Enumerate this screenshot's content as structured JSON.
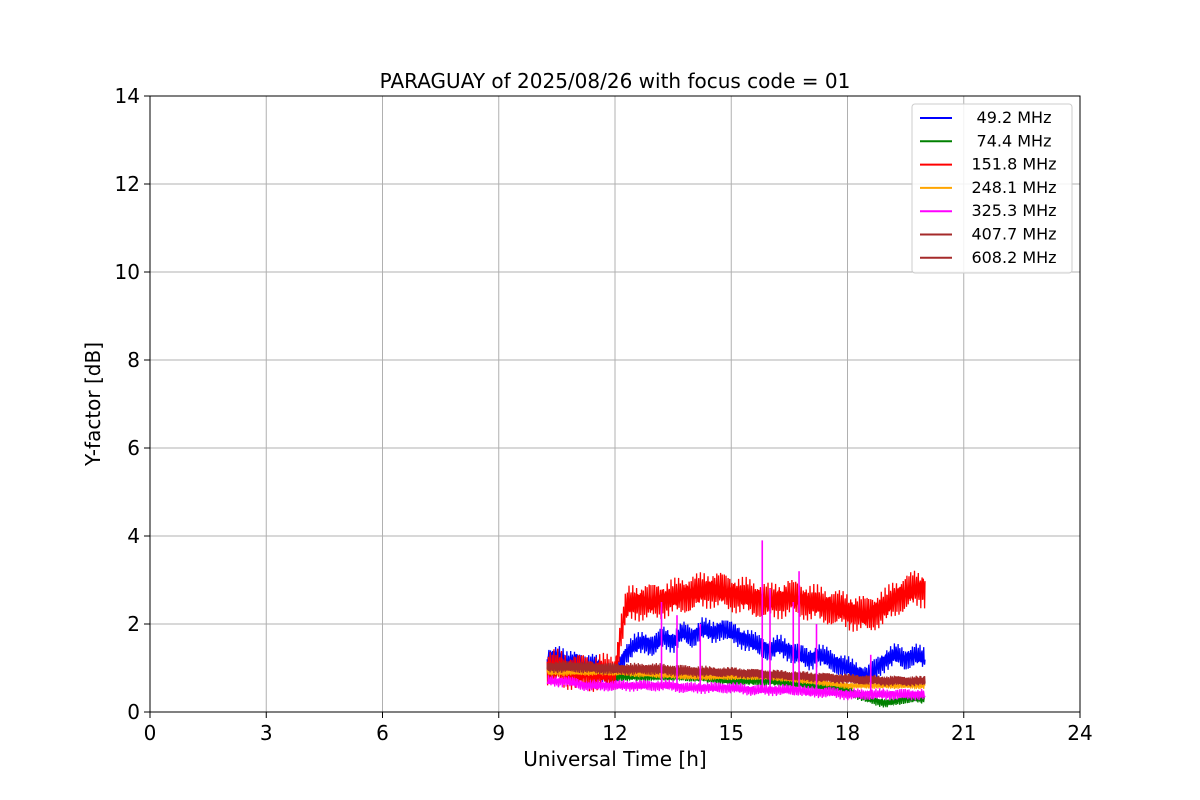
{
  "chart_data": {
    "type": "line",
    "title": "PARAGUAY of 2025/08/26 with focus code = 01",
    "xlabel": "Universal Time [h]",
    "ylabel": "Y-factor [dB]",
    "xlim": [
      0,
      24
    ],
    "ylim": [
      0,
      14
    ],
    "xticks": [
      0,
      3,
      6,
      9,
      12,
      15,
      18,
      21,
      24
    ],
    "yticks": [
      0,
      2,
      4,
      6,
      8,
      10,
      12,
      14
    ],
    "grid": true,
    "legend_position": "top-right",
    "series": [
      {
        "name": " 49.2 MHz",
        "color": "#0000ff",
        "x": [
          10.25,
          10.5,
          10.75,
          11.0,
          11.25,
          11.5,
          11.75,
          12.0,
          12.25,
          12.5,
          12.75,
          13.0,
          13.25,
          13.5,
          13.75,
          14.0,
          14.25,
          14.5,
          14.75,
          15.0,
          15.25,
          15.5,
          15.75,
          16.0,
          16.25,
          16.5,
          16.75,
          17.0,
          17.25,
          17.5,
          17.75,
          18.0,
          18.25,
          18.5,
          18.75,
          19.0,
          19.25,
          19.5,
          19.75,
          20.0
        ],
        "y": [
          1.2,
          1.3,
          1.1,
          1.2,
          1.0,
          1.1,
          0.9,
          0.8,
          1.3,
          1.5,
          1.6,
          1.5,
          1.7,
          1.6,
          1.8,
          1.7,
          1.9,
          1.8,
          1.9,
          1.8,
          1.7,
          1.6,
          1.5,
          1.4,
          1.5,
          1.4,
          1.3,
          1.2,
          1.3,
          1.2,
          1.1,
          1.0,
          0.9,
          0.8,
          1.0,
          1.2,
          1.3,
          1.2,
          1.3,
          1.2
        ]
      },
      {
        "name": " 74.4 MHz",
        "color": "#008000",
        "x": [
          10.25,
          11.0,
          12.0,
          13.0,
          14.0,
          15.0,
          16.0,
          17.0,
          18.0,
          18.5,
          19.0,
          19.5,
          20.0
        ],
        "y": [
          0.9,
          0.9,
          0.8,
          0.8,
          0.8,
          0.7,
          0.7,
          0.6,
          0.5,
          0.3,
          0.2,
          0.3,
          0.3
        ]
      },
      {
        "name": " 151.8 MHz",
        "color": "#ff0000",
        "x": [
          10.25,
          10.5,
          11.0,
          11.5,
          12.0,
          12.15,
          12.3,
          12.5,
          13.0,
          13.5,
          14.0,
          14.5,
          15.0,
          15.5,
          16.0,
          16.5,
          17.0,
          17.5,
          18.0,
          18.5,
          18.75,
          19.0,
          19.25,
          19.5,
          19.75,
          20.0
        ],
        "y": [
          1.0,
          1.0,
          0.9,
          0.9,
          0.9,
          1.8,
          2.4,
          2.5,
          2.5,
          2.6,
          2.7,
          2.8,
          2.7,
          2.6,
          2.5,
          2.6,
          2.5,
          2.4,
          2.3,
          2.2,
          2.3,
          2.4,
          2.6,
          2.7,
          2.8,
          2.8
        ]
      },
      {
        "name": " 248.1 MHz",
        "color": "#ffa500",
        "x": [
          10.25,
          12.0,
          14.0,
          16.0,
          18.0,
          20.0
        ],
        "y": [
          0.9,
          0.9,
          0.8,
          0.8,
          0.6,
          0.6
        ]
      },
      {
        "name": " 325.3 MHz",
        "color": "#ff00ff",
        "x": [
          10.25,
          10.75,
          11.25,
          11.75,
          12.25,
          12.75,
          13.0,
          13.25,
          13.5,
          13.75,
          14.0,
          14.5,
          15.0,
          15.5,
          15.75,
          16.0,
          16.5,
          16.75,
          17.0,
          17.5,
          18.0,
          18.5,
          19.0,
          19.5,
          20.0
        ],
        "y": [
          0.7,
          0.7,
          0.6,
          0.6,
          0.6,
          0.6,
          0.6,
          0.6,
          0.6,
          0.55,
          0.55,
          0.55,
          0.55,
          0.5,
          0.5,
          0.5,
          0.5,
          0.5,
          0.45,
          0.45,
          0.4,
          0.4,
          0.4,
          0.4,
          0.4
        ]
      },
      {
        "name": " 407.7 MHz",
        "color": "#a52a2a",
        "x": [
          10.25,
          11.0,
          12.0,
          13.0,
          14.0,
          15.0,
          16.0,
          17.0,
          18.0,
          19.0,
          20.0
        ],
        "y": [
          1.0,
          1.0,
          0.95,
          0.95,
          0.9,
          0.9,
          0.85,
          0.8,
          0.75,
          0.7,
          0.7
        ]
      },
      {
        "name": " 608.2 MHz",
        "color": "#a52a2a",
        "x": [
          10.25,
          11.0,
          12.0,
          13.0,
          14.0,
          15.0,
          16.0,
          17.0,
          18.0,
          19.0,
          20.0
        ],
        "y": [
          1.05,
          1.05,
          1.0,
          1.0,
          0.95,
          0.9,
          0.85,
          0.8,
          0.75,
          0.72,
          0.7
        ]
      }
    ],
    "spikes": [
      {
        "series": " 325.3 MHz",
        "x": 13.2,
        "y": 2.5
      },
      {
        "series": " 325.3 MHz",
        "x": 13.6,
        "y": 2.2
      },
      {
        "series": " 325.3 MHz",
        "x": 14.2,
        "y": 2.0
      },
      {
        "series": " 325.3 MHz",
        "x": 15.8,
        "y": 3.9
      },
      {
        "series": " 325.3 MHz",
        "x": 16.0,
        "y": 2.8
      },
      {
        "series": " 325.3 MHz",
        "x": 16.6,
        "y": 2.5
      },
      {
        "series": " 325.3 MHz",
        "x": 16.75,
        "y": 3.2
      },
      {
        "series": " 325.3 MHz",
        "x": 17.2,
        "y": 2.0
      },
      {
        "series": " 325.3 MHz",
        "x": 18.6,
        "y": 1.3
      }
    ]
  }
}
